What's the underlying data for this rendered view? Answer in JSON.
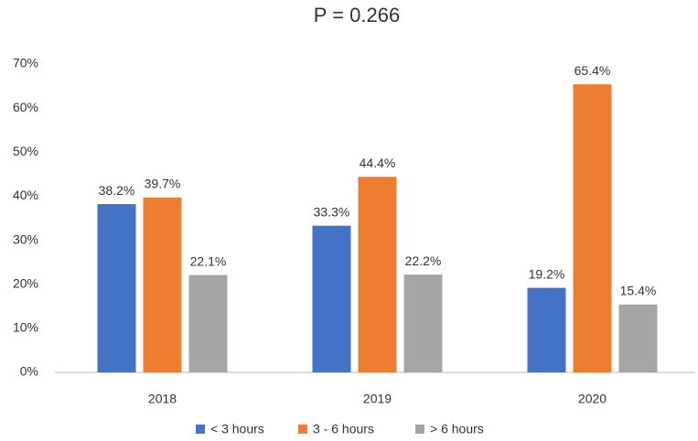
{
  "chart_data": {
    "type": "bar",
    "title": "P = 0.266",
    "categories": [
      "2018",
      "2019",
      "2020"
    ],
    "series": [
      {
        "name": "< 3 hours",
        "color": "#4472c4",
        "values": [
          38.2,
          33.3,
          19.2
        ],
        "value_labels": [
          "38.2%",
          "33.3%",
          "19.2%"
        ]
      },
      {
        "name": "3 - 6 hours",
        "color": "#ed7d31",
        "values": [
          39.7,
          44.4,
          65.4
        ],
        "value_labels": [
          "39.7%",
          "44.4%",
          "65.4%"
        ]
      },
      {
        "name": "> 6 hours",
        "color": "#a5a5a5",
        "values": [
          22.1,
          22.2,
          15.4
        ],
        "value_labels": [
          "22.1%",
          "22.2%",
          "15.4%"
        ]
      }
    ],
    "ylim": [
      0,
      70
    ],
    "yticks": [
      {
        "value": 0,
        "label": "0%"
      },
      {
        "value": 10,
        "label": "10%"
      },
      {
        "value": 20,
        "label": "20%"
      },
      {
        "value": 30,
        "label": "30%"
      },
      {
        "value": 40,
        "label": "40%"
      },
      {
        "value": 50,
        "label": "50%"
      },
      {
        "value": 60,
        "label": "60%"
      },
      {
        "value": 70,
        "label": "70%"
      }
    ],
    "grid": false,
    "legend": "bottom"
  }
}
